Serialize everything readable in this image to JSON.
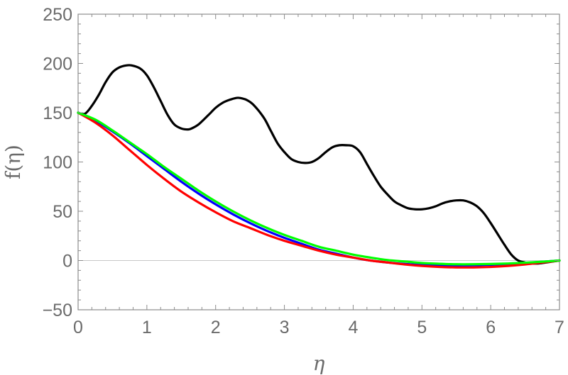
{
  "chart_data": {
    "type": "line",
    "xlabel": "η",
    "ylabel": "f(η)",
    "xlim": [
      0,
      7
    ],
    "ylim": [
      -50,
      250
    ],
    "xticks": [
      0,
      1,
      2,
      3,
      4,
      5,
      6,
      7
    ],
    "yticks": [
      -50,
      0,
      50,
      100,
      150,
      200,
      250
    ],
    "ytick_labels": [
      "−50",
      "0",
      "50",
      "100",
      "150",
      "200",
      "250"
    ],
    "grid": false,
    "legend": "none",
    "series": [
      {
        "color": "#000000",
        "x": [
          0,
          0.1,
          0.2,
          0.3,
          0.4,
          0.5,
          0.6,
          0.7,
          0.78,
          0.9,
          1.0,
          1.1,
          1.2,
          1.3,
          1.4,
          1.5,
          1.6,
          1.65,
          1.75,
          1.9,
          2.0,
          2.1,
          2.2,
          2.3,
          2.35,
          2.45,
          2.55,
          2.7,
          2.8,
          2.9,
          3.0,
          3.1,
          3.2,
          3.3,
          3.4,
          3.5,
          3.6,
          3.7,
          3.8,
          3.9,
          4.0,
          4.1,
          4.2,
          4.3,
          4.4,
          4.5,
          4.6,
          4.7,
          4.8,
          4.9,
          5.0,
          5.1,
          5.2,
          5.3,
          5.4,
          5.5,
          5.6,
          5.7,
          5.8,
          5.9,
          6.0,
          6.1,
          6.2,
          6.3,
          6.4,
          6.5,
          6.55,
          6.6,
          6.7,
          6.8,
          6.9,
          7.0
        ],
        "y": [
          150,
          149,
          157,
          168,
          181,
          191,
          196,
          198,
          198,
          195,
          188,
          176,
          162,
          148,
          138,
          134,
          133,
          134,
          138,
          148,
          155,
          160,
          163,
          165,
          165,
          163,
          158,
          145,
          132,
          119,
          110,
          103,
          100,
          99,
          100,
          104,
          110,
          115,
          117,
          117,
          116,
          110,
          98,
          86,
          75,
          67,
          60,
          56,
          53,
          52,
          52,
          53,
          55,
          58,
          60,
          61,
          61,
          59,
          55,
          48,
          38,
          27,
          16,
          6,
          0,
          -2,
          -3,
          -3,
          -3,
          -2,
          -1,
          0
        ]
      },
      {
        "color": "#0000ff",
        "x": [
          0,
          0.25,
          0.5,
          0.75,
          1.0,
          1.25,
          1.5,
          1.75,
          2.0,
          2.25,
          2.5,
          2.75,
          3.0,
          3.25,
          3.5,
          3.75,
          4.0,
          4.25,
          4.5,
          4.75,
          5.0,
          5.25,
          5.5,
          5.75,
          6.0,
          6.25,
          6.5,
          6.75,
          7.0
        ],
        "y": [
          150,
          142,
          131,
          119,
          106,
          93,
          80,
          68,
          57,
          47,
          38,
          30,
          23,
          17,
          11,
          7,
          3,
          0,
          -2,
          -3.5,
          -4.5,
          -5,
          -5,
          -4.8,
          -4.3,
          -3.5,
          -2.5,
          -1.3,
          0
        ]
      },
      {
        "color": "#ff0000",
        "x": [
          0,
          0.25,
          0.5,
          0.75,
          1.0,
          1.25,
          1.5,
          1.75,
          2.0,
          2.25,
          2.5,
          2.75,
          3.0,
          3.25,
          3.5,
          3.75,
          4.0,
          4.25,
          4.5,
          4.75,
          5.0,
          5.25,
          5.5,
          5.75,
          6.0,
          6.25,
          6.5,
          6.75,
          7.0
        ],
        "y": [
          150,
          140,
          127,
          112,
          97,
          83,
          70,
          59,
          49,
          40,
          33,
          26,
          20,
          15,
          10,
          6,
          3,
          0,
          -2,
          -4,
          -5.5,
          -6.5,
          -7,
          -7,
          -6.5,
          -5.5,
          -4,
          -2,
          0
        ]
      },
      {
        "color": "#00ff00",
        "x": [
          0,
          0.25,
          0.5,
          0.75,
          1.0,
          1.25,
          1.5,
          1.75,
          2.0,
          2.25,
          2.5,
          2.75,
          3.0,
          3.25,
          3.5,
          3.75,
          4.0,
          4.25,
          4.5,
          4.75,
          5.0,
          5.25,
          5.5,
          5.75,
          6.0,
          6.25,
          6.5,
          6.75,
          7.0
        ],
        "y": [
          150,
          143,
          132,
          120,
          108,
          95,
          83,
          71,
          60,
          50,
          41,
          33,
          26,
          20,
          14,
          10,
          6,
          3,
          0.5,
          -1,
          -2.5,
          -3.3,
          -3.8,
          -3.8,
          -3.5,
          -3,
          -2.2,
          -1.2,
          0
        ]
      }
    ]
  }
}
